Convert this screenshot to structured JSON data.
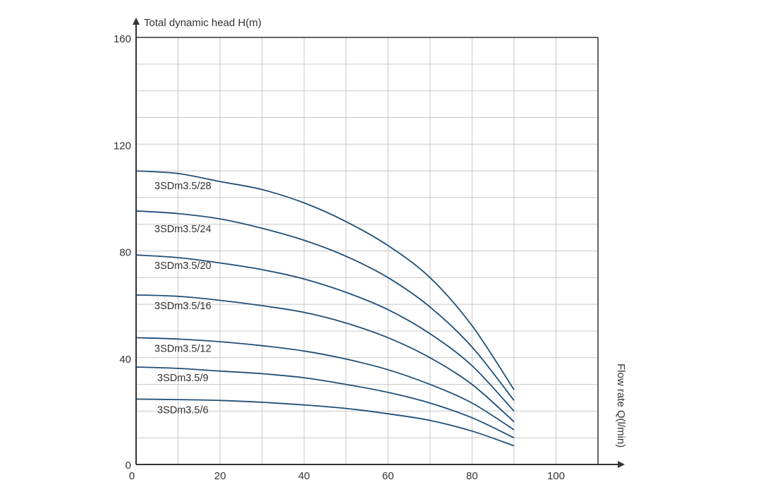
{
  "chart_data": {
    "type": "line",
    "title": "",
    "ylabel": "Total dynamic head H(m)",
    "xlabel": "Flow rate Q(l/min)",
    "xlim": [
      0,
      110
    ],
    "ylim": [
      0,
      160
    ],
    "x_ticks": [
      0,
      20,
      40,
      60,
      80,
      100
    ],
    "y_ticks": [
      0,
      40,
      80,
      120,
      160
    ],
    "x_tick_labels": [
      "0",
      "20",
      "40",
      "60",
      "80",
      "100"
    ],
    "y_tick_labels": [
      "0",
      "40",
      "80",
      "120",
      "160"
    ],
    "grid": true,
    "line_color": "#1f4f78",
    "grid_color": "#c8c8c8",
    "series": [
      {
        "name": "3SDm3.5/28",
        "x": [
          0,
          10,
          20,
          30,
          40,
          50,
          60,
          70,
          80,
          90
        ],
        "values": [
          110,
          109,
          106,
          103,
          98,
          91,
          82,
          70,
          52,
          28
        ]
      },
      {
        "name": "3SDm3.5/24",
        "x": [
          0,
          10,
          20,
          30,
          40,
          50,
          60,
          70,
          80,
          90
        ],
        "values": [
          95,
          94,
          92,
          88.5,
          84,
          78,
          70,
          59,
          44,
          24
        ]
      },
      {
        "name": "3SDm3.5/20",
        "x": [
          0,
          10,
          20,
          30,
          40,
          50,
          60,
          70,
          80,
          90
        ],
        "values": [
          78.5,
          77.5,
          75.5,
          73,
          69.5,
          64.5,
          58,
          49,
          37,
          20
        ]
      },
      {
        "name": "3SDm3.5/16",
        "x": [
          0,
          10,
          20,
          30,
          40,
          50,
          60,
          70,
          80,
          90
        ],
        "values": [
          63.5,
          63,
          61.5,
          59.5,
          57,
          53,
          47.5,
          40,
          30,
          16
        ]
      },
      {
        "name": "3SDm3.5/12",
        "x": [
          0,
          10,
          20,
          30,
          40,
          50,
          60,
          70,
          80,
          90
        ],
        "values": [
          47.5,
          47,
          46,
          44.5,
          42.5,
          39.5,
          35.5,
          30,
          23,
          13
        ]
      },
      {
        "name": "3SDm3.5/9",
        "x": [
          0,
          10,
          20,
          30,
          40,
          50,
          60,
          70,
          80,
          90
        ],
        "values": [
          36.5,
          36,
          35,
          34,
          32.5,
          30,
          27,
          23,
          17.5,
          10
        ]
      },
      {
        "name": "3SDm3.5/6",
        "x": [
          0,
          10,
          20,
          30,
          40,
          50,
          60,
          70,
          80,
          90
        ],
        "values": [
          24.5,
          24.3,
          24,
          23.3,
          22.3,
          21,
          19,
          16.5,
          12.5,
          7
        ]
      }
    ]
  }
}
